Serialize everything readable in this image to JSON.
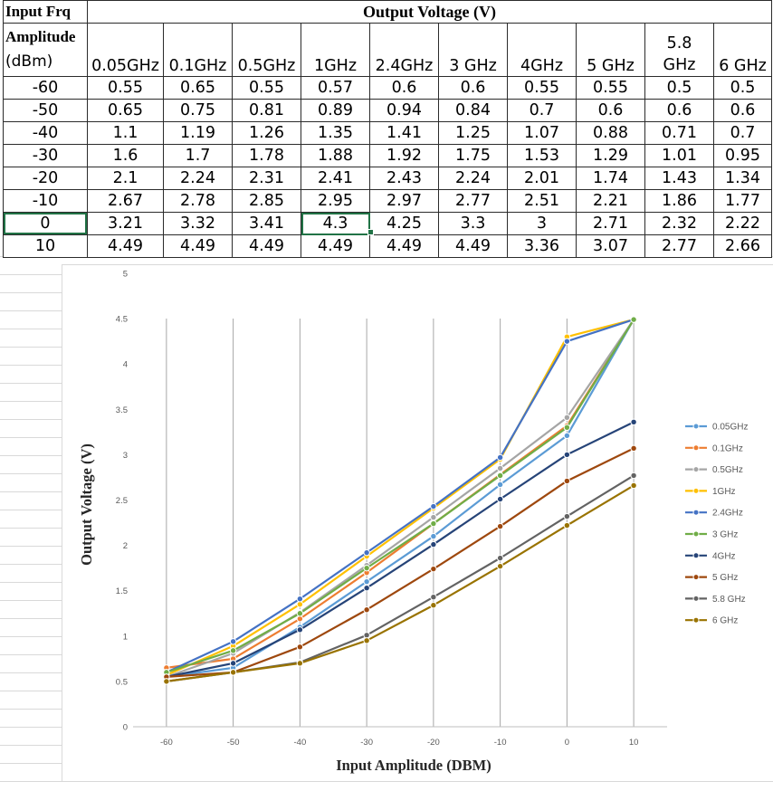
{
  "table": {
    "corner_label_line1": "Input Frq",
    "corner_label_line2": "Amplitude",
    "corner_label_line3": "(dBm)",
    "title": "Output Voltage (V)",
    "columns": [
      "0.05GHz",
      "0.1GHz",
      "0.5GHz",
      "1GHz",
      "2.4GHz",
      "3 GHz",
      "4GHz",
      "5 GHz",
      "5.8 GHz",
      "6 GHz"
    ],
    "col5_8_line1": "5.8",
    "col5_8_line2": "GHz",
    "rows": [
      {
        "amp": "-60",
        "vals": [
          "0.55",
          "0.65",
          "0.55",
          "0.57",
          "0.6",
          "0.6",
          "0.55",
          "0.55",
          "0.5",
          "0.5"
        ]
      },
      {
        "amp": "-50",
        "vals": [
          "0.65",
          "0.75",
          "0.81",
          "0.89",
          "0.94",
          "0.84",
          "0.7",
          "0.6",
          "0.6",
          "0.6"
        ]
      },
      {
        "amp": "-40",
        "vals": [
          "1.1",
          "1.19",
          "1.26",
          "1.35",
          "1.41",
          "1.25",
          "1.07",
          "0.88",
          "0.71",
          "0.7"
        ]
      },
      {
        "amp": "-30",
        "vals": [
          "1.6",
          "1.7",
          "1.78",
          "1.88",
          "1.92",
          "1.75",
          "1.53",
          "1.29",
          "1.01",
          "0.95"
        ]
      },
      {
        "amp": "-20",
        "vals": [
          "2.1",
          "2.24",
          "2.31",
          "2.41",
          "2.43",
          "2.24",
          "2.01",
          "1.74",
          "1.43",
          "1.34"
        ]
      },
      {
        "amp": "-10",
        "vals": [
          "2.67",
          "2.78",
          "2.85",
          "2.95",
          "2.97",
          "2.77",
          "2.51",
          "2.21",
          "1.86",
          "1.77"
        ]
      },
      {
        "amp": "0",
        "vals": [
          "3.21",
          "3.32",
          "3.41",
          "4.3",
          "4.25",
          "3.3",
          "3",
          "2.71",
          "2.32",
          "2.22"
        ]
      },
      {
        "amp": "10",
        "vals": [
          "4.49",
          "4.49",
          "4.49",
          "4.49",
          "4.49",
          "4.49",
          "3.36",
          "3.07",
          "2.77",
          "2.66"
        ]
      }
    ]
  },
  "chart_data": {
    "type": "line",
    "xlabel": "Input Amplitude (DBM)",
    "ylabel": "Output Voltage (V)",
    "x": [
      -60,
      -50,
      -40,
      -30,
      -20,
      -10,
      0,
      10
    ],
    "x_ticks": [
      "-60",
      "-50",
      "-40",
      "-30",
      "-20",
      "-10",
      "0",
      "10"
    ],
    "y_ticks": [
      "0",
      "0.5",
      "1",
      "1.5",
      "2",
      "2.5",
      "3",
      "3.5",
      "4",
      "4.5",
      "5"
    ],
    "ylim": [
      0,
      5
    ],
    "grid": "vertical lines at x categories",
    "legend_position": "right",
    "series": [
      {
        "name": "0.05GHz",
        "color": "#5b9bd5",
        "values": [
          0.55,
          0.65,
          1.1,
          1.6,
          2.1,
          2.67,
          3.21,
          4.49
        ]
      },
      {
        "name": "0.1GHz",
        "color": "#ed7d31",
        "values": [
          0.65,
          0.75,
          1.19,
          1.7,
          2.24,
          2.78,
          3.32,
          4.49
        ]
      },
      {
        "name": "0.5GHz",
        "color": "#a5a5a5",
        "values": [
          0.55,
          0.81,
          1.26,
          1.78,
          2.31,
          2.85,
          3.41,
          4.49
        ]
      },
      {
        "name": "1GHz",
        "color": "#ffc000",
        "values": [
          0.57,
          0.89,
          1.35,
          1.88,
          2.41,
          2.95,
          4.3,
          4.49
        ]
      },
      {
        "name": "2.4GHz",
        "color": "#4472c4",
        "values": [
          0.6,
          0.94,
          1.41,
          1.92,
          2.43,
          2.97,
          4.25,
          4.49
        ]
      },
      {
        "name": "3 GHz",
        "color": "#70ad47",
        "values": [
          0.6,
          0.84,
          1.25,
          1.75,
          2.24,
          2.77,
          3.3,
          4.49
        ]
      },
      {
        "name": "4GHz",
        "color": "#264478",
        "values": [
          0.55,
          0.7,
          1.07,
          1.53,
          2.01,
          2.51,
          3.0,
          3.36
        ]
      },
      {
        "name": "5 GHz",
        "color": "#9e480e",
        "values": [
          0.55,
          0.6,
          0.88,
          1.29,
          1.74,
          2.21,
          2.71,
          3.07
        ]
      },
      {
        "name": "5.8 GHz",
        "color": "#636363",
        "values": [
          0.5,
          0.6,
          0.71,
          1.01,
          1.43,
          1.86,
          2.32,
          2.77
        ]
      },
      {
        "name": "6 GHz",
        "color": "#997300",
        "values": [
          0.5,
          0.6,
          0.7,
          0.95,
          1.34,
          1.77,
          2.22,
          2.66
        ]
      }
    ]
  }
}
